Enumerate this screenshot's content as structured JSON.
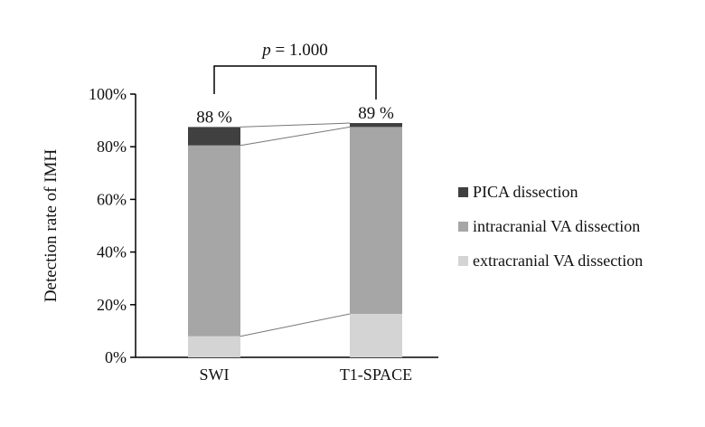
{
  "chart_data": {
    "type": "stacked-bar",
    "ylabel": "Detection rate of IMH",
    "ylim": [
      0,
      100
    ],
    "yticks": [
      0,
      20,
      40,
      60,
      80,
      100
    ],
    "ytick_labels": [
      "0%",
      "20%",
      "40%",
      "60%",
      "80%",
      "100%"
    ],
    "categories": [
      "SWI",
      "T1-SPACE"
    ],
    "series": [
      {
        "name": "extracranial VA dissection",
        "color": "#d4d4d4",
        "values": [
          8,
          16.5
        ]
      },
      {
        "name": "intracranial VA dissection",
        "color": "#a6a6a6",
        "values": [
          72.5,
          71
        ]
      },
      {
        "name": "PICA dissection",
        "color": "#404040",
        "values": [
          7,
          1.5
        ]
      }
    ],
    "totals": [
      "88 %",
      "89 %"
    ],
    "legend_order": [
      "PICA dissection",
      "intracranial VA dissection",
      "extracranial VA dissection"
    ],
    "legend_position": "right",
    "connector_lines": true,
    "significance": {
      "p_symbol": "p",
      "text": " = 1.000"
    }
  }
}
